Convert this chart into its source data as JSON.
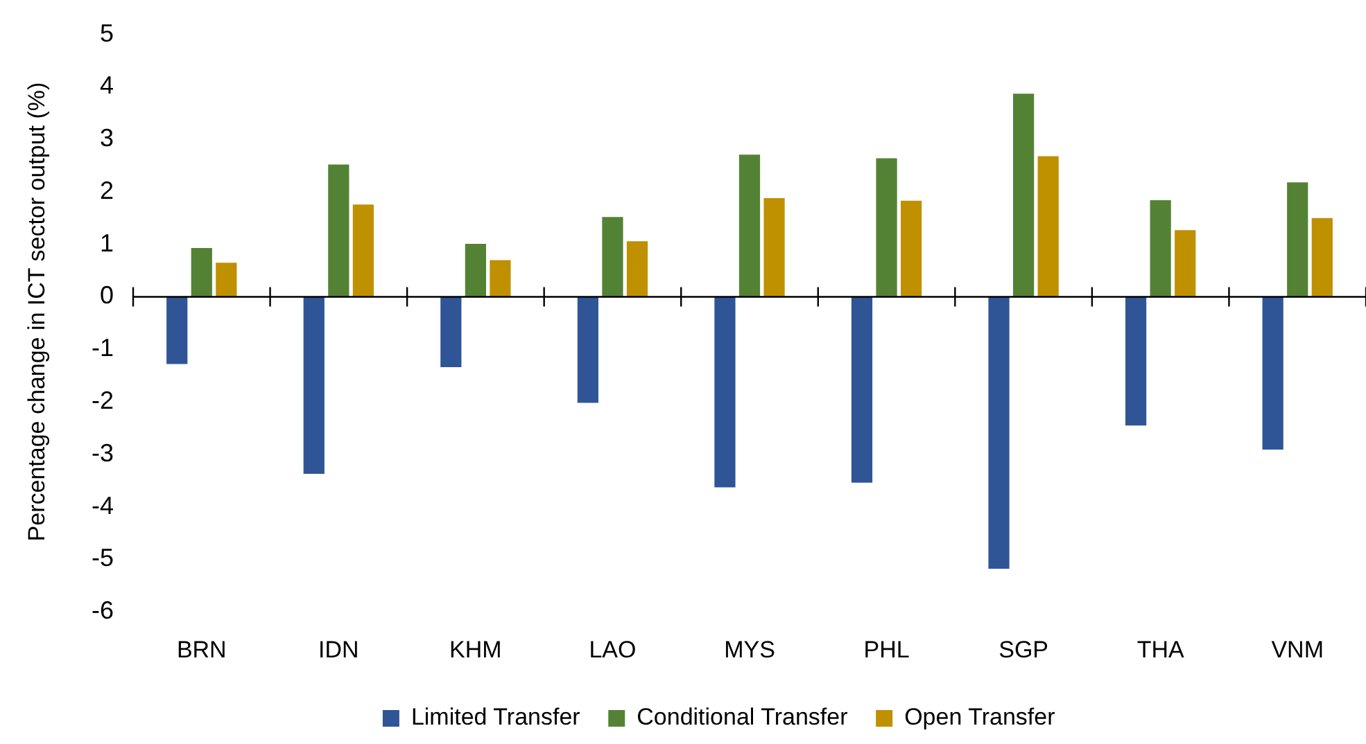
{
  "chart_data": {
    "type": "bar",
    "ylabel": "Percentage change in ICT sector output (%)",
    "categories": [
      "BRN",
      "IDN",
      "KHM",
      "LAO",
      "MYS",
      "PHL",
      "SGP",
      "THA",
      "VNM"
    ],
    "series": [
      {
        "name": "Limited Transfer",
        "color": "#2f5597",
        "values": [
          -1.28,
          -3.37,
          -1.34,
          -2.02,
          -3.63,
          -3.54,
          -5.18,
          -2.45,
          -2.91
        ]
      },
      {
        "name": "Conditional Transfer",
        "color": "#548235",
        "values": [
          0.93,
          2.52,
          1.01,
          1.52,
          2.71,
          2.64,
          3.87,
          1.84,
          2.18
        ]
      },
      {
        "name": "Open Transfer",
        "color": "#bf9000",
        "values": [
          0.65,
          1.76,
          0.7,
          1.06,
          1.88,
          1.83,
          2.68,
          1.27,
          1.5
        ]
      }
    ],
    "ylim": [
      -6,
      5
    ],
    "yticks": [
      -6,
      -5,
      -4,
      -3,
      -2,
      -1,
      0,
      1,
      2,
      3,
      4,
      5
    ],
    "legend": "bottom"
  }
}
